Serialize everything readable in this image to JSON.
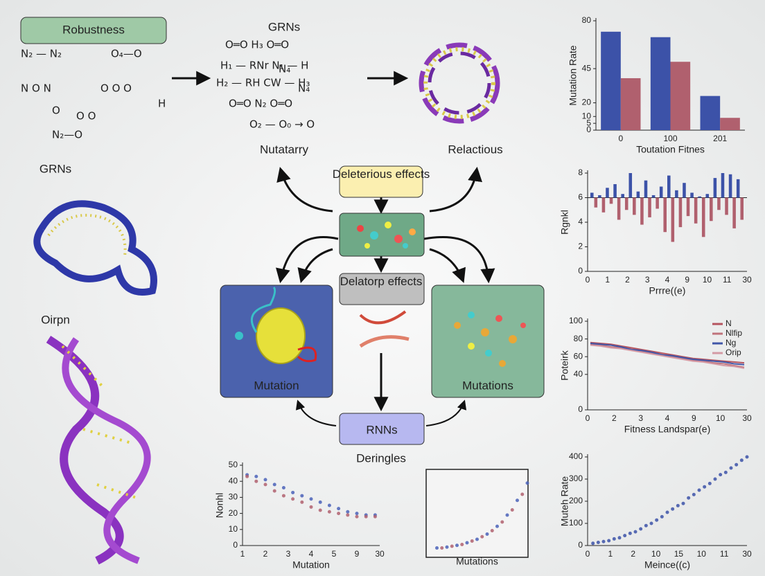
{
  "labels": {
    "robustness": "Robustness",
    "grns_top": "GRNs",
    "grns_left": "GRNs",
    "oirpn": "Oirpn",
    "nutatarry": "Nutatarry",
    "relactious": "Relactious",
    "deleterious": "Deleterious effects",
    "delatorp": "Delatorp effects",
    "mutation": "Mutation",
    "mutations": "Mutations",
    "rnns": "RNNs",
    "deringles": "Deringles"
  },
  "formulas_left": [
    "N₂ — N₂",
    "N   O   N",
    "O₄—O",
    "O  O  O",
    "O  O",
    "H",
    "O",
    "N₂—O"
  ],
  "formulas_center": [
    "O═O    H₃    O═O",
    "H₁ — RNr   N₁ — H",
    "N₄",
    "H₂ — RH   CW — H₃",
    "N₄",
    "O═O   N₂   O═O",
    "O₂ — O₀ → O"
  ],
  "chart_data": [
    {
      "type": "bar",
      "ylabel": "Mutation Rate",
      "xlabel": "Toutation Fitnes",
      "categories": [
        "0",
        "100",
        "201"
      ],
      "ylim": [
        0,
        80
      ],
      "yticks": [
        0,
        5,
        10,
        20,
        45,
        80
      ],
      "series": [
        {
          "color": "#3c52a8",
          "values": [
            72,
            68,
            25
          ]
        },
        {
          "color": "#b0606e",
          "values": [
            38,
            50,
            9
          ]
        }
      ]
    },
    {
      "type": "bar",
      "ylabel": "Rgnkl",
      "xlabel": "Prrre((e)",
      "baseline": 6,
      "xtick_labels": [
        "0",
        "1",
        "2",
        "3",
        "4",
        "9",
        "10",
        "11",
        "30"
      ],
      "ylim": [
        0,
        8
      ],
      "yticks": [
        0,
        2,
        4,
        6,
        8
      ],
      "series": [
        {
          "color": "#3c52a8",
          "values": [
            6.4,
            6.2,
            6.8,
            7.1,
            6.3,
            8,
            6.5,
            7.4,
            6.2,
            6.9,
            7.8,
            6.6,
            7.2,
            6.4,
            6.1,
            6.3,
            7.6,
            8,
            7.9,
            7.5
          ]
        },
        {
          "color": "#b0606e",
          "values": [
            5.2,
            4.8,
            5.5,
            4.2,
            5,
            4.6,
            3.8,
            4.4,
            5.1,
            3.2,
            2.4,
            3.6,
            4.5,
            3.9,
            2.8,
            4.1,
            5,
            4.6,
            3.5,
            4.2
          ]
        }
      ]
    },
    {
      "type": "line",
      "ylabel": "Poteirk",
      "xlabel": "Fitness Landspar(e)",
      "xtick_labels": [
        "0",
        "2",
        "3",
        "4",
        "9",
        "10",
        "30"
      ],
      "ylim": [
        0,
        100
      ],
      "yticks": [
        0,
        40,
        60,
        80,
        100
      ],
      "series": [
        {
          "name": "N",
          "color": "#b5545e",
          "values": [
            76,
            75,
            74,
            72,
            70,
            68,
            66,
            64,
            62,
            60,
            58,
            57,
            56,
            55,
            54,
            53
          ]
        },
        {
          "name": "Nlfip",
          "color": "#c0727b",
          "values": [
            74,
            73,
            71,
            70,
            69,
            66,
            64,
            63,
            60,
            58,
            56,
            55,
            53,
            52,
            50,
            48
          ]
        },
        {
          "name": "Ng",
          "color": "#4056a8",
          "values": [
            75,
            74,
            73,
            71,
            68,
            67,
            65,
            62,
            61,
            59,
            57,
            56,
            55,
            54,
            52,
            51
          ]
        },
        {
          "name": "Orip",
          "color": "#d49aa5",
          "values": [
            73,
            72,
            70,
            69,
            67,
            65,
            63,
            61,
            59,
            57,
            55,
            54,
            52,
            50,
            49,
            47
          ]
        }
      ]
    },
    {
      "type": "scatter",
      "ylabel": "Muteh Rate",
      "xlabel": "Meince((c)",
      "xtick_labels": [
        "0",
        "1",
        "2",
        "10",
        "15",
        "10",
        "11",
        "30"
      ],
      "xlim": [
        0,
        30
      ],
      "ylim": [
        0,
        400
      ],
      "yticks": [
        0,
        100,
        200,
        300,
        400
      ],
      "series": [
        {
          "color": "#3c52a8",
          "x": [
            1,
            2,
            3,
            4,
            5,
            6,
            7,
            8,
            9,
            10,
            11,
            12,
            13,
            14,
            15,
            16,
            17,
            18,
            19,
            20,
            21,
            22,
            23,
            24,
            25,
            26,
            27,
            28,
            29,
            30
          ],
          "y": [
            10,
            14,
            18,
            22,
            30,
            35,
            45,
            55,
            62,
            75,
            90,
            100,
            115,
            130,
            150,
            165,
            180,
            190,
            215,
            230,
            250,
            265,
            280,
            300,
            320,
            330,
            350,
            365,
            385,
            400
          ]
        }
      ]
    },
    {
      "type": "scatter",
      "ylabel": "Nonhl",
      "xlabel": "Mutation",
      "xtick_labels": [
        "1",
        "2",
        "3",
        "4",
        "5",
        "9",
        "30"
      ],
      "xlim": [
        0,
        30
      ],
      "ylim": [
        0,
        50
      ],
      "yticks": [
        0,
        10,
        20,
        30,
        40,
        50
      ],
      "series": [
        {
          "color": "#4a62b8",
          "x": [
            1,
            3,
            5,
            7,
            9,
            11,
            13,
            15,
            17,
            19,
            21,
            23,
            25,
            27,
            29
          ],
          "y": [
            44,
            43,
            41,
            38,
            36,
            33,
            31,
            29,
            27,
            25,
            23,
            21,
            20,
            19,
            19
          ]
        },
        {
          "color": "#b0606e",
          "x": [
            1,
            3,
            5,
            7,
            9,
            11,
            13,
            15,
            17,
            19,
            21,
            23,
            25,
            27,
            29
          ],
          "y": [
            43,
            40,
            38,
            34,
            31,
            29,
            27,
            24,
            22,
            21,
            20,
            19,
            18,
            18,
            18
          ]
        }
      ]
    },
    {
      "type": "scatter",
      "xlabel": "Mutations",
      "boxed": true,
      "xlim": [
        0,
        10
      ],
      "ylim": [
        0,
        10
      ],
      "series": [
        {
          "color": "#4a62b8",
          "x": [
            1,
            2,
            3,
            4,
            5,
            6,
            7,
            8,
            9,
            10
          ],
          "y": [
            1,
            1.1,
            1.3,
            1.6,
            2,
            2.6,
            3.5,
            4.8,
            6.5,
            8.5
          ]
        },
        {
          "color": "#b0606e",
          "x": [
            1.5,
            2.5,
            3.5,
            4.5,
            5.5,
            6.5,
            7.5,
            8.5,
            9.5
          ],
          "y": [
            1,
            1.2,
            1.4,
            1.8,
            2.3,
            3,
            4,
            5.4,
            7.2
          ]
        }
      ]
    }
  ]
}
